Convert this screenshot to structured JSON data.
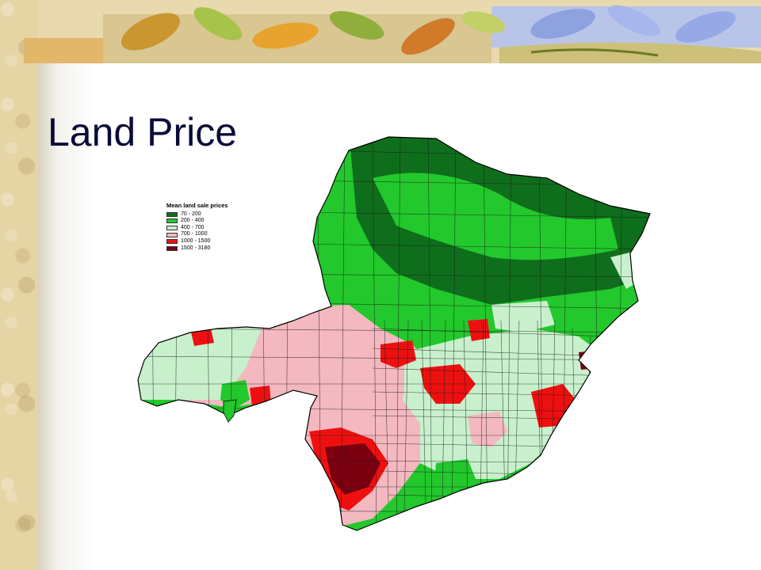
{
  "slide": {
    "title": "Land Price"
  },
  "legend": {
    "title": "Mean land sale prices",
    "items": [
      {
        "label": "70 - 200",
        "color": "#0f6e1c"
      },
      {
        "label": "200 - 400",
        "color": "#22c82c"
      },
      {
        "label": "400 - 700",
        "color": "#c8f0cc"
      },
      {
        "label": "700 - 1000",
        "color": "#f4b8c0"
      },
      {
        "label": "1000 - 1500",
        "color": "#ee1010"
      },
      {
        "label": "1500 - 3180",
        "color": "#7a0010"
      }
    ]
  },
  "map": {
    "outline_color": "#000000"
  }
}
